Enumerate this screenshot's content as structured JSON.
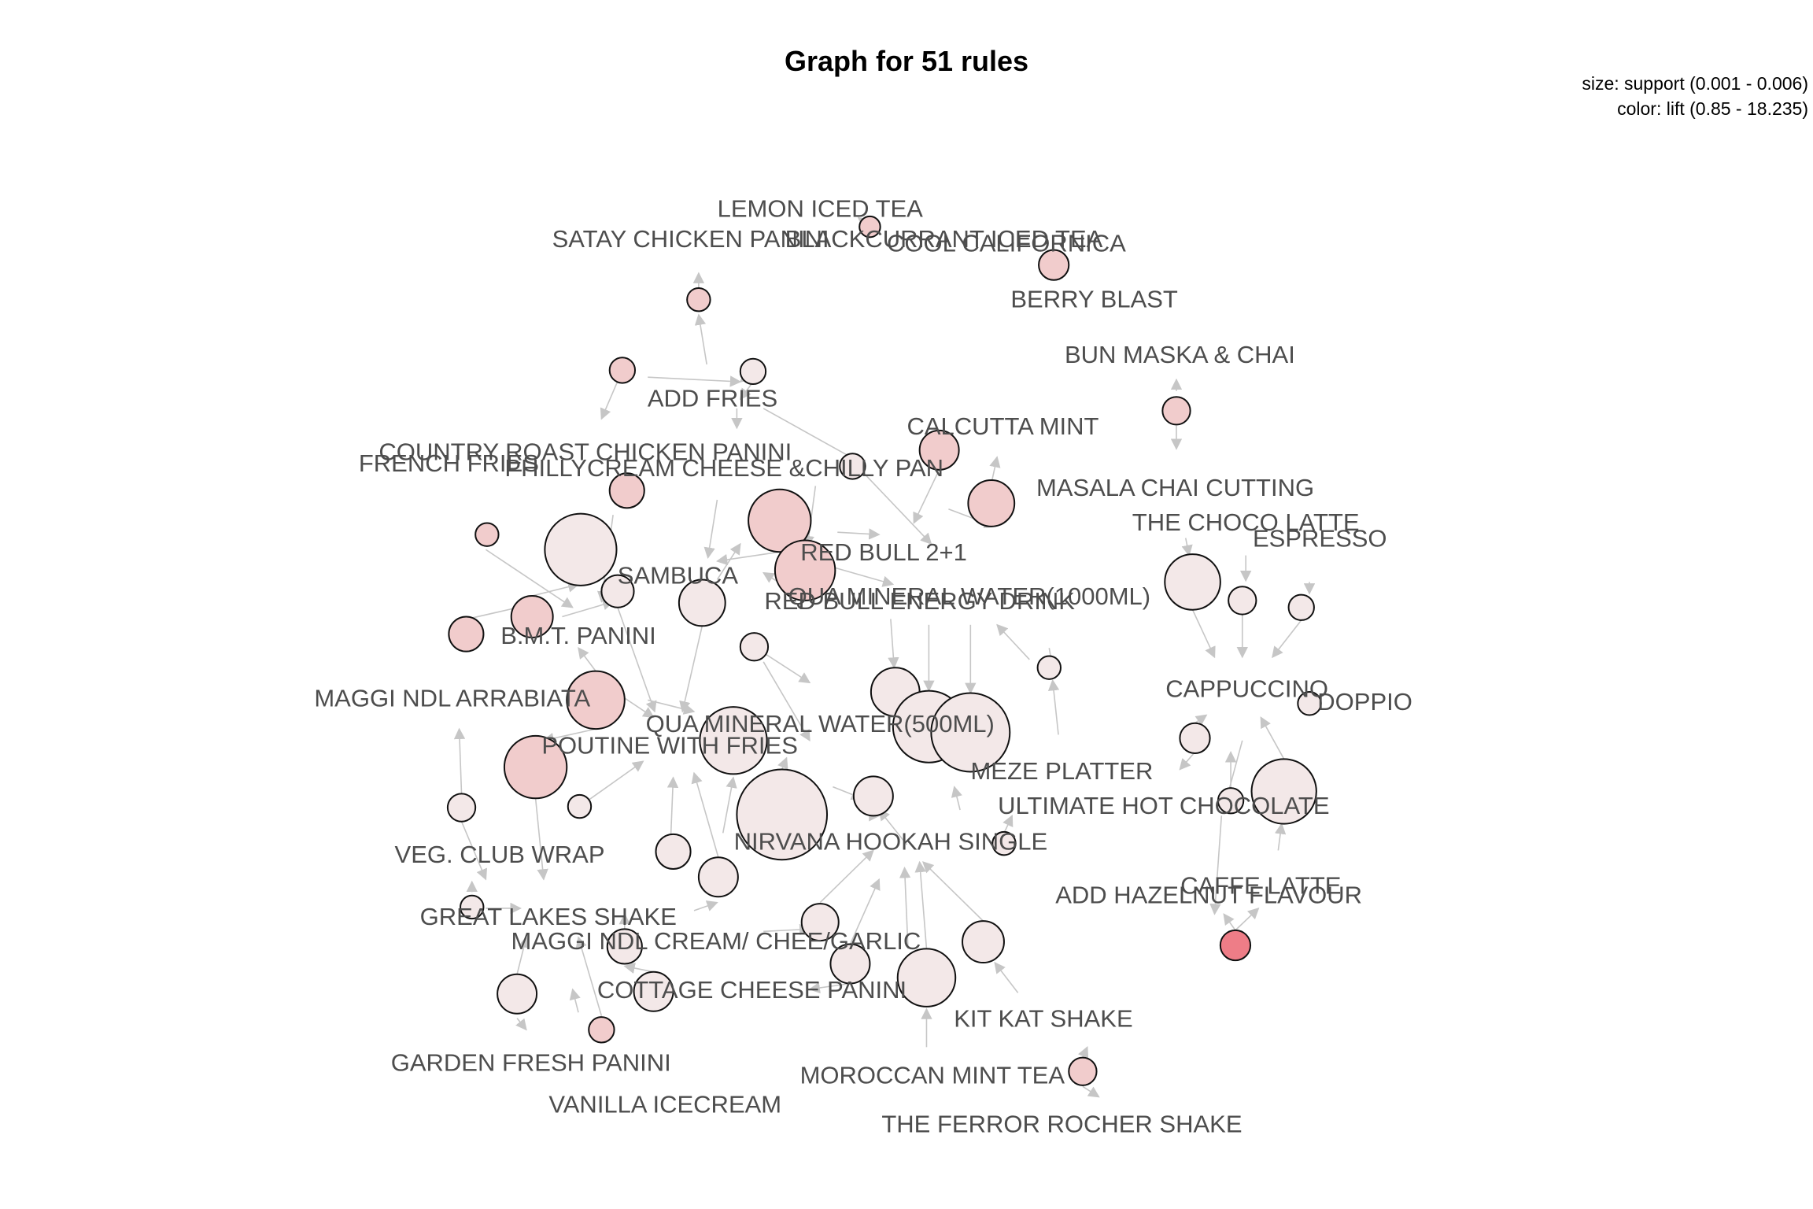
{
  "title": "Graph for 51 rules",
  "legend": {
    "size": "size: support (0.001 - 0.006)",
    "color": "color: lift (0.85 - 18.235)"
  },
  "colors": {
    "edge": "#c6c6c6",
    "label": "#4d4d4d",
    "node_border": "#111111",
    "lift_low": "#f3e8e8",
    "lift_mid": "#f1cccc",
    "lift_high": "#ee7d87"
  },
  "labels": [
    "LEMON ICED TEA",
    "SATAY CHICKEN PANINI",
    "BLACKCURRANT ICED TEA",
    "COOL CALIFORNICA",
    "BERRY BLAST",
    "BUN MASKA & CHAI",
    "ADD FRIES",
    "CALCUTTA MINT",
    "COUNTRY ROAST CHICKEN PANINI",
    "FRENCH FRIES",
    "PHILLYCREAM CHEESE &CHILLY PAN",
    "MASALA CHAI CUTTING",
    "THE CHOCO LATTE",
    "ESPRESSO",
    "RED BULL 2+1",
    "SAMBUCA",
    "QUA  MINERAL WATER(1000ML)",
    "RED BULL ENERGY DRINK",
    "B.M.T. PANINI",
    "MAGGI NDL ARRABIATA",
    "CAPPUCCINO",
    "DOPPIO",
    "QUA  MINERAL WATER(500ML)",
    "POUTINE WITH FRIES",
    "MEZE PLATTER",
    "ULTIMATE HOT CHOCOLATE",
    "NIRVANA HOOKAH SINGLE",
    "VEG. CLUB WRAP",
    "CAFFE LATTE",
    "ADD HAZELNUT FLAVOUR",
    "GREAT LAKES SHAKE",
    "MAGGI NDL CREAM/ CHEE/GARLIC",
    "COTTAGE CHEESE PANINI",
    "KIT KAT SHAKE",
    "GARDEN FRESH PANINI",
    "MOROCCAN MINT TEA",
    "VANILLA ICECREAM",
    "THE FERROR ROCHER SHAKE"
  ]
}
